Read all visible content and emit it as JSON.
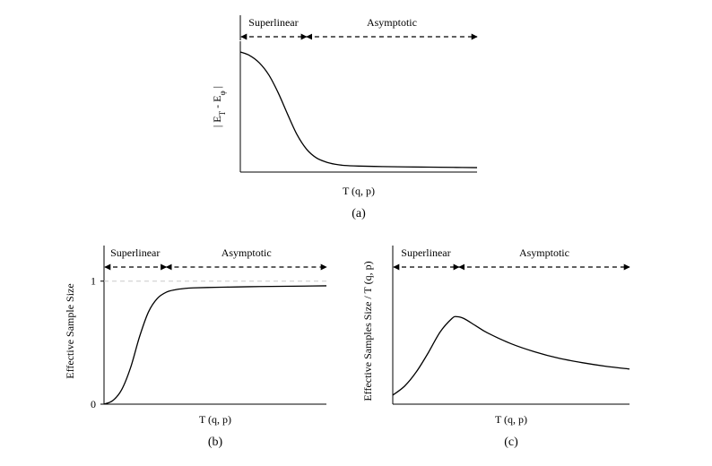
{
  "chart_data": [
    {
      "type": "line",
      "id": "a",
      "caption": "(a)",
      "xlabel": "T (q, p)",
      "ylabel_parts": [
        "| E",
        "T",
        " - E",
        "φ",
        " |"
      ],
      "yticks": [],
      "regimes": [
        "Superlinear",
        "Asymptotic"
      ],
      "regime_split": 0.28,
      "xlim": [
        0,
        1
      ],
      "ylim": [
        0,
        1
      ],
      "series": [
        {
          "x": [
            0,
            0.04,
            0.08,
            0.12,
            0.16,
            0.2,
            0.24,
            0.28,
            0.32,
            0.36,
            0.4,
            0.44,
            0.5,
            0.6,
            0.7,
            0.8,
            0.9,
            1.0
          ],
          "y": [
            1.0,
            0.97,
            0.91,
            0.81,
            0.66,
            0.48,
            0.31,
            0.19,
            0.12,
            0.085,
            0.065,
            0.055,
            0.05,
            0.046,
            0.043,
            0.041,
            0.039,
            0.037
          ]
        }
      ]
    },
    {
      "type": "line",
      "id": "b",
      "caption": "(b)",
      "xlabel": "T (q, p)",
      "ylabel_parts": [
        "Effective Sample Size"
      ],
      "yticks": [
        {
          "value": 0,
          "label": "0"
        },
        {
          "value": 1,
          "label": "1"
        }
      ],
      "reference_line": 1,
      "regimes": [
        "Superlinear",
        "Asymptotic"
      ],
      "regime_split": 0.28,
      "xlim": [
        0,
        1
      ],
      "ylim": [
        0,
        1.1
      ],
      "series": [
        {
          "x": [
            0,
            0.04,
            0.08,
            0.12,
            0.16,
            0.2,
            0.24,
            0.28,
            0.32,
            0.36,
            0.4,
            0.5,
            0.6,
            0.7,
            0.8,
            0.9,
            1.0
          ],
          "y": [
            0.0,
            0.03,
            0.12,
            0.3,
            0.55,
            0.75,
            0.86,
            0.91,
            0.93,
            0.94,
            0.945,
            0.95,
            0.953,
            0.956,
            0.958,
            0.96,
            0.962
          ]
        }
      ]
    },
    {
      "type": "line",
      "id": "c",
      "caption": "(c)",
      "xlabel": "T (q, p)",
      "ylabel_parts": [
        "Effective Samples Size / T (q, p)"
      ],
      "yticks": [],
      "regimes": [
        "Superlinear",
        "Asymptotic"
      ],
      "regime_split": 0.28,
      "xlim": [
        0,
        1
      ],
      "ylim": [
        0,
        1.5
      ],
      "series": [
        {
          "x": [
            0,
            0.05,
            0.1,
            0.15,
            0.2,
            0.25,
            0.27,
            0.3,
            0.35,
            0.4,
            0.5,
            0.6,
            0.7,
            0.8,
            0.9,
            1.0
          ],
          "y": [
            0.1,
            0.2,
            0.36,
            0.57,
            0.8,
            0.95,
            0.97,
            0.95,
            0.87,
            0.79,
            0.67,
            0.58,
            0.51,
            0.46,
            0.42,
            0.39
          ]
        }
      ]
    }
  ]
}
